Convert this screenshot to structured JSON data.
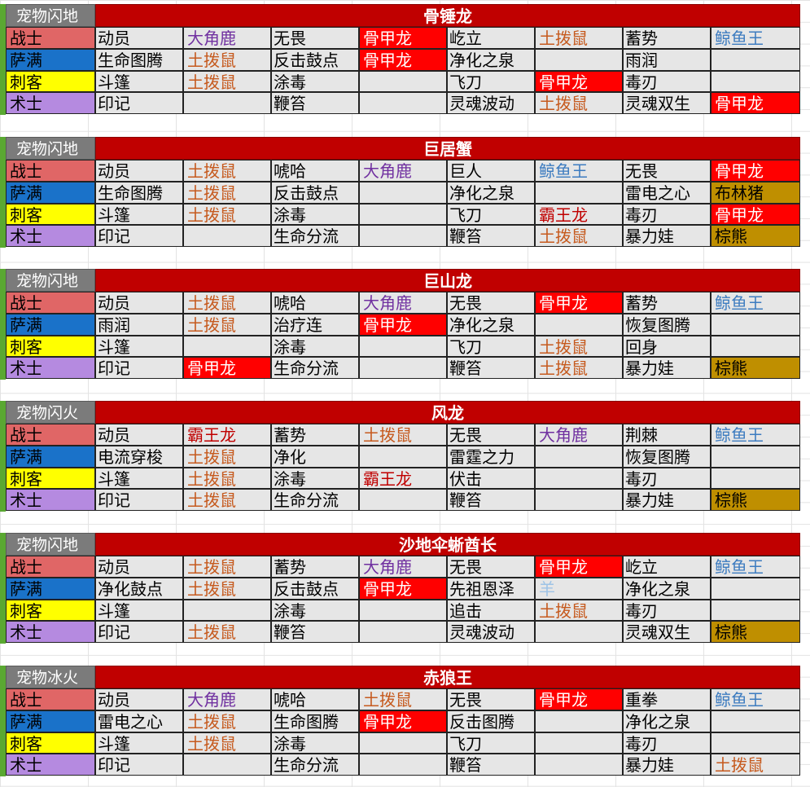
{
  "classes": [
    {
      "name": "战士",
      "color": "#e06666"
    },
    {
      "name": "萨满",
      "color": "#1a72c9"
    },
    {
      "name": "刺客",
      "color": "#ffff00"
    },
    {
      "name": "术士",
      "color": "#b58ae0"
    }
  ],
  "pet_styles": {
    "土拨鼠": {
      "fg": "#c65a1e",
      "bg": ""
    },
    "大角鹿": {
      "fg": "#7030a0",
      "bg": ""
    },
    "鲸鱼王": {
      "fg": "#3d7cc0",
      "bg": ""
    },
    "骨甲龙": {
      "fg": "#ffffff",
      "bg": "#ff0000"
    },
    "霸王龙": {
      "fg": "#c00000",
      "bg": ""
    },
    "布林猪": {
      "fg": "#000000",
      "bg": "#bf8f00"
    },
    "棕熊": {
      "fg": "#000000",
      "bg": "#bf8f00"
    },
    "羊": {
      "fg": "#9dc3e6",
      "bg": ""
    }
  },
  "sections": [
    {
      "tag": "宠物闪地",
      "boss": "骨锤龙",
      "rows": [
        [
          "动员",
          "大角鹿",
          "无畏",
          "骨甲龙",
          "屹立",
          "土拨鼠",
          "蓄势",
          "鲸鱼王"
        ],
        [
          "生命图腾",
          "土拨鼠",
          "反击鼓点",
          "骨甲龙",
          "净化之泉",
          "",
          "雨润",
          ""
        ],
        [
          "斗篷",
          "土拨鼠",
          "涂毒",
          "",
          "飞刀",
          "骨甲龙",
          "毒刃",
          ""
        ],
        [
          "印记",
          "",
          "鞭笞",
          "",
          "灵魂波动",
          "土拨鼠",
          "灵魂双生",
          "骨甲龙"
        ]
      ]
    },
    {
      "tag": "宠物闪地",
      "boss": "巨居蟹",
      "rows": [
        [
          "动员",
          "土拨鼠",
          "唬哈",
          "大角鹿",
          "巨人",
          "鲸鱼王",
          "无畏",
          "骨甲龙"
        ],
        [
          "生命图腾",
          "土拨鼠",
          "反击鼓点",
          "",
          "净化之泉",
          "",
          "雷电之心",
          "布林猪"
        ],
        [
          "斗篷",
          "土拨鼠",
          "涂毒",
          "",
          "飞刀",
          "霸王龙",
          "毒刃",
          "骨甲龙"
        ],
        [
          "印记",
          "",
          "生命分流",
          "",
          "鞭笞",
          "土拨鼠",
          "暴力娃",
          "棕熊"
        ]
      ]
    },
    {
      "tag": "宠物闪地",
      "boss": "巨山龙",
      "rows": [
        [
          "动员",
          "土拨鼠",
          "唬哈",
          "大角鹿",
          "无畏",
          "骨甲龙",
          "蓄势",
          "鲸鱼王"
        ],
        [
          "雨润",
          "土拨鼠",
          "治疗连",
          "骨甲龙",
          "净化之泉",
          "",
          "恢复图腾",
          ""
        ],
        [
          "斗篷",
          "",
          "涂毒",
          "",
          "飞刀",
          "土拨鼠",
          "回身",
          ""
        ],
        [
          "印记",
          "骨甲龙",
          "生命分流",
          "",
          "鞭笞",
          "土拨鼠",
          "暴力娃",
          "棕熊"
        ]
      ]
    },
    {
      "tag": "宠物闪火",
      "boss": "风龙",
      "rows": [
        [
          "动员",
          "霸王龙",
          "蓄势",
          "土拨鼠",
          "无畏",
          "大角鹿",
          "荆棘",
          "鲸鱼王"
        ],
        [
          "电流穿梭",
          "土拨鼠",
          "净化",
          "",
          "雷霆之力",
          "",
          "恢复图腾",
          ""
        ],
        [
          "斗篷",
          "土拨鼠",
          "涂毒",
          "霸王龙",
          "伏击",
          "",
          "毒刃",
          ""
        ],
        [
          "印记",
          "土拨鼠",
          "生命分流",
          "",
          "鞭笞",
          "",
          "暴力娃",
          "棕熊"
        ]
      ]
    },
    {
      "tag": "宠物闪地",
      "boss": "沙地伞蜥酋长",
      "rows": [
        [
          "动员",
          "土拨鼠",
          "蓄势",
          "大角鹿",
          "无畏",
          "骨甲龙",
          "屹立",
          "鲸鱼王"
        ],
        [
          "净化鼓点",
          "土拨鼠",
          "反击鼓点",
          "骨甲龙",
          "先祖恩泽",
          "羊",
          "净化之泉",
          ""
        ],
        [
          "斗篷",
          "",
          "涂毒",
          "",
          "追击",
          "土拨鼠",
          "毒刃",
          ""
        ],
        [
          "印记",
          "土拨鼠",
          "鞭笞",
          "",
          "灵魂波动",
          "",
          "灵魂双生",
          "棕熊"
        ]
      ]
    },
    {
      "tag": "宠物冰火",
      "boss": "赤狼王",
      "rows": [
        [
          "动员",
          "大角鹿",
          "唬哈",
          "土拨鼠",
          "无畏",
          "骨甲龙",
          "重拳",
          "鲸鱼王"
        ],
        [
          "雷电之心",
          "土拨鼠",
          "生命图腾",
          "骨甲龙",
          "反击图腾",
          "",
          "净化之泉",
          ""
        ],
        [
          "斗篷",
          "土拨鼠",
          "涂毒",
          "",
          "飞刀",
          "",
          "毒刃",
          ""
        ],
        [
          "印记",
          "",
          "生命分流",
          "",
          "鞭笞",
          "",
          "暴力娃",
          "土拨鼠"
        ]
      ]
    }
  ]
}
